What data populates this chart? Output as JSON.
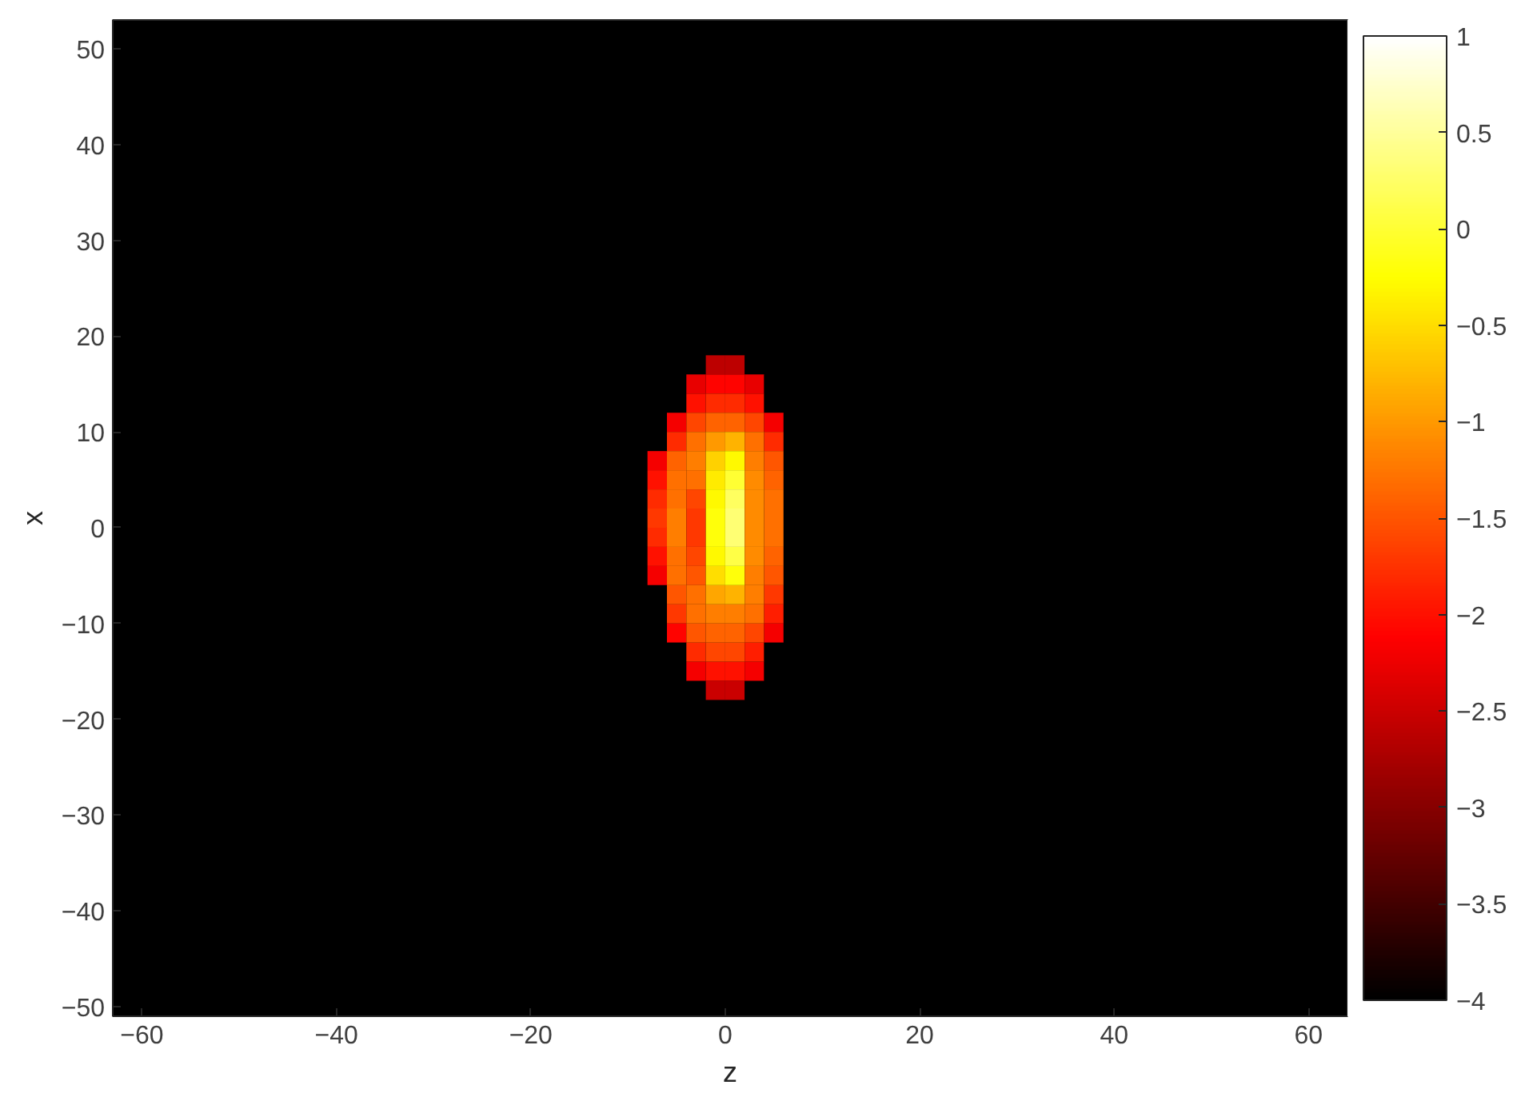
{
  "chart_data": {
    "type": "heatmap",
    "xlabel": "z",
    "ylabel": "x",
    "x": [
      -9,
      -7,
      -5,
      -3,
      -1,
      1,
      3,
      5,
      7,
      9
    ],
    "y": [
      19,
      17,
      15,
      13,
      11,
      9,
      7,
      5,
      3,
      1,
      -1,
      -3,
      -5,
      -7,
      -9,
      -11,
      -13,
      -15,
      -17,
      -19
    ],
    "cells": [
      [
        -4,
        -4,
        -4,
        -4,
        -4,
        -4,
        -4,
        -4,
        -4,
        -4
      ],
      [
        -4,
        -4,
        -4,
        -4,
        -2.6,
        -2.6,
        -4,
        -4,
        -4,
        -4
      ],
      [
        -4,
        -4,
        -4,
        -2.3,
        -2.1,
        -2.1,
        -2.3,
        -4,
        -4,
        -4
      ],
      [
        -4,
        -4,
        -4,
        -2,
        -1.8,
        -1.8,
        -2,
        -4,
        -4,
        -4
      ],
      [
        -4,
        -4,
        -2.2,
        -1.6,
        -1.4,
        -1.4,
        -1.6,
        -2.2,
        -4,
        -4
      ],
      [
        -4,
        -4,
        -1.8,
        -1.3,
        -1,
        -0.8,
        -1.3,
        -1.8,
        -4,
        -4
      ],
      [
        -4,
        -2.2,
        -1.4,
        -1.2,
        -0.6,
        -0.3,
        -1.2,
        -1.5,
        -4,
        -4
      ],
      [
        -4,
        -2,
        -1.3,
        -1.3,
        -0.4,
        0,
        -1.1,
        -1.4,
        -4,
        -4
      ],
      [
        -4,
        -1.8,
        -1.3,
        -1.6,
        -0.3,
        0.2,
        -1.1,
        -1.3,
        -4,
        -4
      ],
      [
        -4,
        -1.7,
        -1.2,
        -1.7,
        -0.2,
        0.3,
        -1.1,
        -1.3,
        -4,
        -4
      ],
      [
        -4,
        -1.8,
        -1.2,
        -1.7,
        -0.2,
        0.3,
        -1.1,
        -1.3,
        -4,
        -4
      ],
      [
        -4,
        -2,
        -1.3,
        -1.6,
        -0.3,
        0.1,
        -1.1,
        -1.4,
        -4,
        -4
      ],
      [
        -4,
        -2.2,
        -1.3,
        -1.5,
        -0.5,
        -0.2,
        -1.2,
        -1.5,
        -4,
        -4
      ],
      [
        -4,
        -4,
        -1.5,
        -1.3,
        -0.9,
        -0.8,
        -1.2,
        -1.7,
        -4,
        -4
      ],
      [
        -4,
        -4,
        -1.7,
        -1.3,
        -1.2,
        -1.2,
        -1.3,
        -1.9,
        -4,
        -4
      ],
      [
        -4,
        -4,
        -2.1,
        -1.5,
        -1.4,
        -1.4,
        -1.6,
        -2.2,
        -4,
        -4
      ],
      [
        -4,
        -4,
        -4,
        -1.8,
        -1.6,
        -1.6,
        -1.9,
        -4,
        -4,
        -4
      ],
      [
        -4,
        -4,
        -4,
        -2.2,
        -2,
        -2,
        -2.2,
        -4,
        -4,
        -4
      ],
      [
        -4,
        -4,
        -4,
        -4,
        -2.5,
        -2.5,
        -4,
        -4,
        -4,
        -4
      ],
      [
        -4,
        -4,
        -4,
        -4,
        -4,
        -4,
        -4,
        -4,
        -4,
        -4
      ]
    ],
    "xlim": [
      -63,
      64
    ],
    "xticks": [
      -60,
      -40,
      -20,
      0,
      20,
      40,
      60
    ],
    "ylim": [
      -51,
      53
    ],
    "yticks": [
      -50,
      -40,
      -30,
      -20,
      -10,
      0,
      10,
      20,
      30,
      40,
      50
    ],
    "clim": [
      -4,
      1
    ],
    "cticks": [
      -4,
      -3.5,
      -3,
      -2.5,
      -2,
      -1.5,
      -1,
      -0.5,
      0,
      0.5,
      1
    ],
    "grid": false
  }
}
